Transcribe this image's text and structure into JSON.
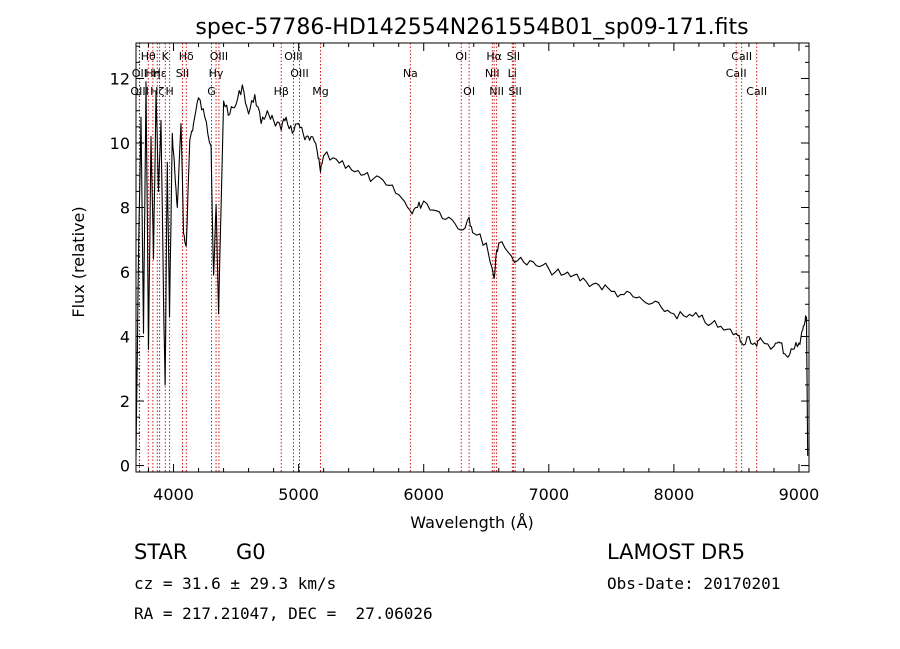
{
  "chart_data": {
    "type": "line",
    "title": "spec-57786-HD142554N261554B01_sp09-171.fits",
    "xlabel": "Wavelength (Å)",
    "ylabel": "Flux (relative)",
    "xlim": [
      3700,
      9080
    ],
    "ylim": [
      -0.2,
      13.1
    ],
    "xticks": [
      4000,
      5000,
      6000,
      7000,
      8000,
      9000
    ],
    "yticks": [
      0,
      2,
      4,
      6,
      8,
      10,
      12
    ],
    "line_color": "#000000",
    "marker_color": "#cc0000",
    "spectrum": {
      "x": [
        3700,
        3720,
        3740,
        3760,
        3780,
        3800,
        3820,
        3840,
        3860,
        3880,
        3900,
        3920,
        3933,
        3950,
        3968,
        3990,
        4010,
        4030,
        4060,
        4080,
        4101,
        4130,
        4160,
        4200,
        4250,
        4300,
        4320,
        4340,
        4360,
        4400,
        4450,
        4500,
        4550,
        4600,
        4650,
        4700,
        4750,
        4800,
        4861,
        4900,
        4950,
        5000,
        5050,
        5100,
        5150,
        5175,
        5200,
        5300,
        5400,
        5500,
        5600,
        5700,
        5800,
        5893,
        5950,
        6000,
        6100,
        6200,
        6300,
        6363,
        6400,
        6500,
        6563,
        6580,
        6600,
        6700,
        6800,
        6900,
        7000,
        7100,
        7200,
        7300,
        7400,
        7500,
        7600,
        7700,
        7800,
        7900,
        8000,
        8100,
        8200,
        8300,
        8400,
        8500,
        8542,
        8600,
        8662,
        8700,
        8800,
        8850,
        8900,
        8950,
        9000,
        9030,
        9050,
        9060,
        9070
      ],
      "y": [
        0.3,
        6.5,
        10.8,
        4.1,
        11.9,
        3.6,
        10.2,
        6.4,
        11.6,
        8.5,
        10.7,
        5.2,
        2.5,
        9.4,
        4.6,
        10.3,
        9.1,
        8.0,
        10.6,
        7.2,
        6.8,
        10.1,
        10.6,
        11.4,
        10.8,
        9.9,
        5.9,
        8.1,
        4.7,
        11.3,
        10.9,
        11.2,
        11.8,
        10.9,
        11.5,
        10.6,
        11.0,
        10.7,
        10.4,
        10.8,
        10.3,
        10.6,
        10.1,
        10.2,
        9.7,
        9.1,
        9.6,
        9.5,
        9.3,
        9.0,
        8.9,
        8.7,
        8.4,
        7.9,
        8.0,
        8.2,
        7.9,
        7.7,
        7.3,
        7.7,
        7.2,
        6.9,
        5.8,
        6.6,
        6.9,
        6.5,
        6.3,
        6.2,
        6.1,
        5.9,
        5.9,
        5.7,
        5.6,
        5.4,
        5.3,
        5.2,
        5.0,
        4.9,
        4.7,
        4.6,
        4.6,
        4.4,
        4.2,
        4.1,
        3.8,
        4.0,
        3.7,
        3.9,
        3.7,
        3.8,
        3.4,
        3.6,
        3.8,
        4.2,
        4.5,
        4.6,
        0.3
      ]
    },
    "lines": [
      {
        "name": "Hθ",
        "x": 3798,
        "row": 0
      },
      {
        "name": "OII",
        "x": 3727,
        "row": 1
      },
      {
        "name": "OIII",
        "x": 3729,
        "row": 2
      },
      {
        "name": "Hη",
        "x": 3835,
        "row": 1
      },
      {
        "name": "K",
        "x": 3934,
        "row": 0
      },
      {
        "name": "Hε",
        "x": 3889,
        "row": 1
      },
      {
        "name": "Hζ",
        "x": 3870,
        "row": 2
      },
      {
        "name": "SII",
        "x": 4072,
        "row": 1
      },
      {
        "name": "H",
        "x": 3969,
        "row": 2
      },
      {
        "name": "Hδ",
        "x": 4102,
        "row": 0
      },
      {
        "name": "OIII",
        "x": 4363,
        "row": 0
      },
      {
        "name": "Hγ",
        "x": 4340,
        "row": 1
      },
      {
        "name": "G",
        "x": 4304,
        "row": 2
      },
      {
        "name": "OIII",
        "x": 4959,
        "row": 0
      },
      {
        "name": "OIII",
        "x": 5007,
        "row": 1
      },
      {
        "name": "Hβ",
        "x": 4861,
        "row": 2
      },
      {
        "name": "Mg",
        "x": 5175,
        "row": 2
      },
      {
        "name": "Na",
        "x": 5893,
        "row": 1
      },
      {
        "name": "OI",
        "x": 6300,
        "row": 0
      },
      {
        "name": "OI",
        "x": 6363,
        "row": 2
      },
      {
        "name": "Hα",
        "x": 6563,
        "row": 0
      },
      {
        "name": "NII",
        "x": 6548,
        "row": 1
      },
      {
        "name": "NII",
        "x": 6583,
        "row": 2
      },
      {
        "name": "SII",
        "x": 6717,
        "row": 0
      },
      {
        "name": "Li",
        "x": 6708,
        "row": 1
      },
      {
        "name": "SII",
        "x": 6731,
        "row": 2
      },
      {
        "name": "CaII",
        "x": 8542,
        "row": 0
      },
      {
        "name": "CaII",
        "x": 8498,
        "row": 1
      },
      {
        "name": "CaII",
        "x": 8662,
        "row": 2
      }
    ]
  },
  "info": {
    "object_class": "STAR",
    "subclass": "G0",
    "survey": "LAMOST DR5",
    "redshift": "cz = 31.6 ± 29.3 km/s",
    "obs_date": "Obs-Date: 20170201",
    "coords": "RA = 217.21047, DEC =  27.06026"
  }
}
